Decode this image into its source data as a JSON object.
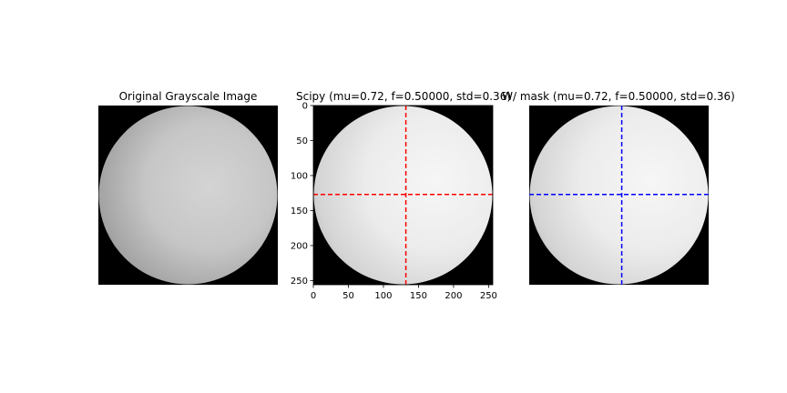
{
  "chart_data": [
    {
      "type": "image",
      "title": "Original Grayscale Image",
      "axes_visible": false,
      "image": {
        "size": [
          256,
          256
        ],
        "content": "grayscale sphere on black background"
      }
    },
    {
      "type": "image",
      "title": "Scipy (mu=0.72, f=0.50000, std=0.36)",
      "axes_visible": true,
      "image": {
        "size": [
          256,
          256
        ],
        "content": "filtered sphere on black background"
      },
      "xlim": [
        0,
        256
      ],
      "ylim": [
        256,
        0
      ],
      "xticks": [
        0,
        50,
        100,
        150,
        200,
        250
      ],
      "yticks": [
        0,
        50,
        100,
        150,
        200,
        250
      ],
      "crosshair": {
        "x": 132,
        "y": 127,
        "color": "#ff0000",
        "style": "dashed"
      }
    },
    {
      "type": "image",
      "title": "W/ mask (mu=0.72, f=0.50000, std=0.36)",
      "axes_visible": false,
      "image": {
        "size": [
          256,
          256
        ],
        "content": "filtered sphere on black background"
      },
      "crosshair": {
        "x": 132,
        "y": 127,
        "color": "#0000ff",
        "style": "dashed"
      }
    }
  ]
}
